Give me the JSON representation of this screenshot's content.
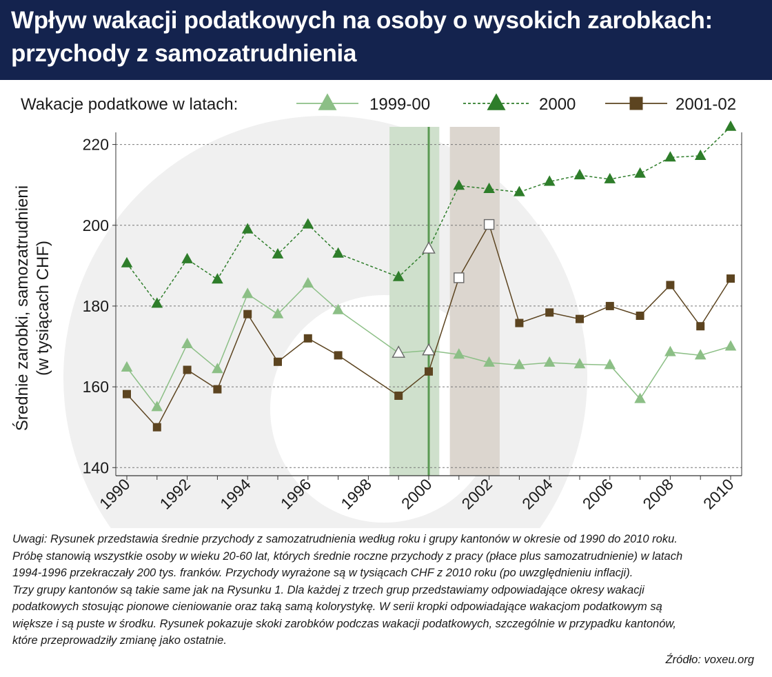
{
  "header": {
    "title_line1": "Wpływ wakacji podatkowych na osoby o wysokich zarobkach:",
    "title_line2": "przychody z samozatrudnienia"
  },
  "chart_data": {
    "type": "line",
    "title": "Wpływ wakacji podatkowych na osoby o wysokich zarobkach: przychody z samozatrudnienia",
    "legend_title": "Wakacje podatkowe w latach:",
    "legend_position": "top",
    "ylabel_line1": "Średnie zarobki, samozatrudnieni",
    "ylabel_line2": "(w tysiącach CHF)",
    "xlabel": "",
    "xlim": [
      1990,
      2010
    ],
    "ylim": [
      138,
      223
    ],
    "x_ticks": [
      1990,
      1992,
      1994,
      1996,
      1998,
      2000,
      2002,
      2004,
      2006,
      2008,
      2010
    ],
    "y_ticks": [
      140,
      160,
      180,
      200,
      220
    ],
    "grid": "horizontal-dashed",
    "x": [
      1990,
      1991,
      1992,
      1993,
      1994,
      1995,
      1996,
      1997,
      1999,
      2000,
      2001,
      2002,
      2003,
      2004,
      2005,
      2006,
      2007,
      2008,
      2009,
      2010
    ],
    "shaded_periods": [
      {
        "from": 1998.7,
        "to": 2000.35,
        "color": "#cfe0cc"
      },
      {
        "from": 2000.7,
        "to": 2002.35,
        "color": "#dcd6cf"
      }
    ],
    "vertical_line": {
      "x": 2000,
      "color": "#5a9a52"
    },
    "series": [
      {
        "name": "1999-00",
        "marker": "triangle",
        "line_style": "solid",
        "color": "#8cbf86",
        "values": [
          164.8,
          155.0,
          170.6,
          164.4,
          183.0,
          178.0,
          185.6,
          179.0,
          168.4,
          169.0,
          168.0,
          166.0,
          165.4,
          166.0,
          165.6,
          165.4,
          157.0,
          168.6,
          167.8,
          170.0
        ],
        "hollow_x": [
          1999,
          2000
        ]
      },
      {
        "name": "2000",
        "marker": "triangle",
        "line_style": "dashed",
        "color": "#2e7d2a",
        "values": [
          190.6,
          180.6,
          191.6,
          186.6,
          199.0,
          192.8,
          200.2,
          193.0,
          187.2,
          194.2,
          209.8,
          209.0,
          208.2,
          210.8,
          212.4,
          211.4,
          212.8,
          216.8,
          217.2,
          224.4
        ],
        "hollow_x": [
          2000
        ]
      },
      {
        "name": "2001-02",
        "marker": "square",
        "line_style": "solid",
        "color": "#5c4420",
        "values": [
          158.2,
          150.0,
          164.2,
          159.4,
          178.0,
          166.2,
          172.0,
          167.8,
          157.8,
          163.8,
          187.0,
          200.2,
          175.8,
          178.4,
          176.8,
          180.0,
          177.6,
          185.2,
          175.0,
          186.8
        ],
        "hollow_x": [
          2001,
          2002
        ]
      }
    ]
  },
  "notes": [
    "Uwagi: Rysunek przedstawia średnie przychody z samozatrudnienia według roku i grupy kantonów w okresie od 1990 do 2010 roku.",
    "Próbę stanowią wszystkie osoby w wieku 20-60 lat, których średnie roczne przychody z pracy (płace plus samozatrudnienie) w latach",
    "1994-1996 przekraczały 200 tys. franków. Przychody wyrażone są w tysiącach CHF z 2010 roku (po uwzględnieniu inflacji).",
    "Trzy grupy kantonów są takie same jak na Rysunku 1. Dla każdej z trzech grup przedstawiamy odpowiadające okresy wakacji",
    "podatkowych stosując pionowe cieniowanie oraz taką samą kolorystykę. W serii kropki odpowiadające wakacjom podatkowym są",
    "większe i są puste w środku. Rysunek pokazuje skoki zarobków podczas wakacji podatkowych, szczególnie w przypadku kantonów,",
    "które przeprowadziły zmianę jako ostatnie."
  ],
  "source": "Źródło: voxeu.org"
}
